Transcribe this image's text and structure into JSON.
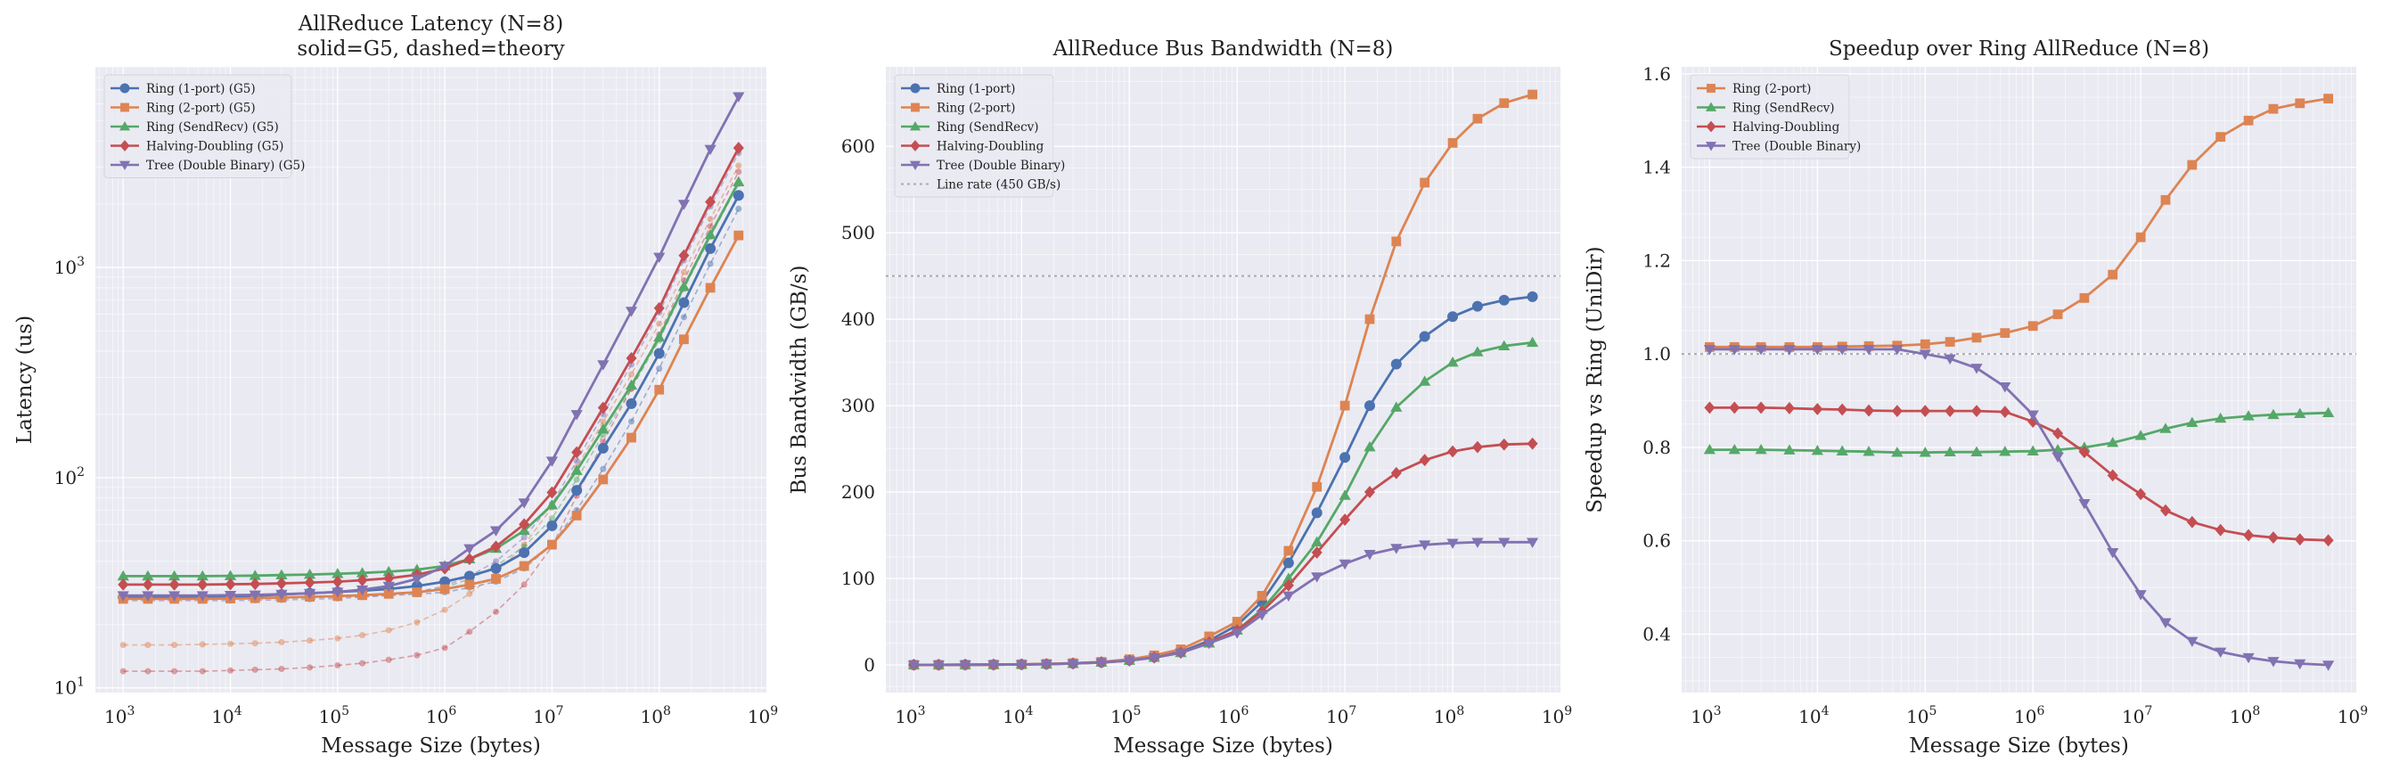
{
  "chart_data": [
    {
      "type": "line",
      "title": "AllReduce Latency (N=8)",
      "subtitle": "solid=G5, dashed=theory",
      "xlabel": "Message Size (bytes)",
      "ylabel": "Latency (us)",
      "xscale": "log",
      "yscale": "log",
      "xlim": [
        550,
        1000000000
      ],
      "ylim": [
        9.5,
        9000
      ],
      "xticks": [
        1000,
        10000,
        100000,
        1000000,
        10000000,
        100000000,
        1000000000
      ],
      "xticklabels": [
        [
          "10",
          "3"
        ],
        [
          "10",
          "4"
        ],
        [
          "10",
          "5"
        ],
        [
          "10",
          "6"
        ],
        [
          "10",
          "7"
        ],
        [
          "10",
          "8"
        ],
        [
          "10",
          "9"
        ]
      ],
      "yticks": [
        10,
        100,
        1000
      ],
      "yticklabels": [
        [
          "10",
          "1"
        ],
        [
          "10",
          "2"
        ],
        [
          "10",
          "3"
        ]
      ],
      "grid": true,
      "legend": "top-left",
      "x": [
        1000,
        1700,
        3000,
        5500,
        10000,
        17000,
        30000,
        55000,
        100000,
        170000,
        300000,
        550000,
        1000000,
        1700000,
        3000000,
        5500000,
        10000000,
        17000000,
        30000000,
        55000000,
        100000000,
        170000000,
        300000000,
        550000000
      ],
      "series": [
        {
          "name": "Ring (1-port) (G5)",
          "color": "#4c72b0",
          "marker": "o",
          "values": [
            27,
            27,
            27,
            27,
            27.2,
            27.4,
            27.8,
            28.2,
            28.6,
            29,
            29.5,
            30.5,
            32,
            34,
            37,
            44,
            59,
            87,
            138,
            225,
            390,
            680,
            1230,
            2200
          ]
        },
        {
          "name": "Ring (2-port) (G5)",
          "color": "#dd8452",
          "marker": "s",
          "values": [
            26.5,
            26.5,
            26.5,
            26.5,
            26.6,
            26.7,
            26.9,
            27.1,
            27.3,
            27.6,
            28,
            28.5,
            29.5,
            31,
            33,
            38,
            48,
            66,
            98,
            155,
            262,
            455,
            800,
            1420
          ]
        },
        {
          "name": "Ring (SendRecv) (G5)",
          "color": "#55a868",
          "marker": "^",
          "values": [
            34,
            34,
            34,
            34,
            34.1,
            34.2,
            34.4,
            34.6,
            34.9,
            35.2,
            35.7,
            36.5,
            38,
            41,
            46,
            56,
            74,
            108,
            170,
            275,
            465,
            810,
            1430,
            2550
          ]
        },
        {
          "name": "Halving-Doubling (G5)",
          "color": "#c44e52",
          "marker": "D",
          "values": [
            31,
            31,
            31,
            31,
            31.1,
            31.2,
            31.4,
            31.7,
            32,
            32.5,
            33.2,
            34.5,
            37,
            41,
            47,
            60,
            85,
            132,
            215,
            370,
            640,
            1140,
            2050,
            3700
          ]
        },
        {
          "name": "Tree (Double Binary) (G5)",
          "color": "#8172b2",
          "marker": "v",
          "values": [
            27.5,
            27.5,
            27.5,
            27.5,
            27.6,
            27.7,
            27.9,
            28.2,
            28.6,
            29.3,
            30.5,
            33,
            38,
            46,
            56,
            76,
            120,
            200,
            345,
            620,
            1120,
            2000,
            3650,
            6500
          ]
        }
      ],
      "theory_series": [
        {
          "color": "#4c72b0",
          "values": [
            27,
            27,
            27,
            27,
            27,
            27,
            27,
            27.1,
            27.2,
            27.3,
            27.5,
            27.9,
            28.5,
            30,
            32,
            37,
            48,
            70,
            110,
            185,
            330,
            580,
            1040,
            1900
          ]
        },
        {
          "color": "#dd8452",
          "values": [
            16,
            16,
            16,
            16.1,
            16.2,
            16.3,
            16.5,
            16.8,
            17.2,
            17.8,
            18.8,
            20.5,
            23.5,
            28,
            35,
            48,
            72,
            112,
            185,
            310,
            540,
            950,
            1700,
            3050
          ]
        },
        {
          "color": "#55a868",
          "values": [
            26.5,
            26.5,
            26.5,
            26.5,
            26.5,
            26.6,
            26.7,
            26.8,
            27,
            27.3,
            27.8,
            28.6,
            30,
            33,
            38,
            47,
            64,
            98,
            160,
            265,
            450,
            790,
            1400,
            2500
          ]
        },
        {
          "color": "#c44e52",
          "values": [
            12,
            12,
            12,
            12,
            12.1,
            12.2,
            12.3,
            12.5,
            12.8,
            13.1,
            13.6,
            14.3,
            15.5,
            18.5,
            23,
            31,
            47,
            82,
            148,
            265,
            480,
            870,
            1570,
            2850
          ]
        },
        {
          "color": "#8172b2",
          "values": [
            26,
            26,
            26,
            26,
            26,
            26.1,
            26.2,
            26.4,
            26.6,
            27,
            27.6,
            28.6,
            30.5,
            34,
            40,
            52,
            75,
            120,
            200,
            345,
            610,
            1080,
            1950,
            3500
          ]
        }
      ]
    },
    {
      "type": "line",
      "title": "AllReduce Bus Bandwidth (N=8)",
      "xlabel": "Message Size (bytes)",
      "ylabel": "Bus Bandwidth (GB/s)",
      "xscale": "log",
      "yscale": "linear",
      "xlim": [
        550,
        1000000000
      ],
      "ylim": [
        -32,
        692
      ],
      "xticks": [
        1000,
        10000,
        100000,
        1000000,
        10000000,
        100000000,
        1000000000
      ],
      "xticklabels": [
        [
          "10",
          "3"
        ],
        [
          "10",
          "4"
        ],
        [
          "10",
          "5"
        ],
        [
          "10",
          "6"
        ],
        [
          "10",
          "7"
        ],
        [
          "10",
          "8"
        ],
        [
          "10",
          "9"
        ]
      ],
      "yticks": [
        0,
        100,
        200,
        300,
        400,
        500,
        600
      ],
      "yticklabels": [
        "0",
        "100",
        "200",
        "300",
        "400",
        "500",
        "600"
      ],
      "grid": true,
      "legend": "top-left",
      "x": [
        1000,
        1700,
        3000,
        5500,
        10000,
        17000,
        30000,
        55000,
        100000,
        170000,
        300000,
        550000,
        1000000,
        1700000,
        3000000,
        5500000,
        10000000,
        17000000,
        30000000,
        55000000,
        100000000,
        170000000,
        300000000,
        550000000
      ],
      "series": [
        {
          "name": "Ring (1-port)",
          "color": "#4c72b0",
          "marker": "o",
          "values": [
            0.1,
            0.1,
            0.2,
            0.4,
            0.6,
            1,
            1.8,
            3,
            5.5,
            9,
            15,
            28,
            46,
            73,
            118,
            176,
            240,
            300,
            348,
            380,
            403,
            415,
            422,
            426
          ]
        },
        {
          "name": "Ring (2-port)",
          "color": "#dd8452",
          "marker": "s",
          "values": [
            0.1,
            0.1,
            0.2,
            0.4,
            0.7,
            1.2,
            2,
            3.5,
            6.5,
            11,
            18,
            33,
            50,
            80,
            132,
            206,
            300,
            400,
            490,
            558,
            604,
            632,
            650,
            660
          ]
        },
        {
          "name": "Ring (SendRecv)",
          "color": "#55a868",
          "marker": "^",
          "values": [
            0.1,
            0.1,
            0.2,
            0.3,
            0.5,
            0.9,
            1.5,
            2.8,
            5,
            8.5,
            14,
            25,
            40,
            64,
            100,
            142,
            196,
            252,
            298,
            328,
            350,
            362,
            369,
            373
          ]
        },
        {
          "name": "Halving-Doubling",
          "color": "#c44e52",
          "marker": "D",
          "values": [
            0.1,
            0.1,
            0.2,
            0.3,
            0.5,
            0.9,
            1.6,
            3,
            5,
            8.5,
            14,
            26,
            40,
            62,
            92,
            130,
            168,
            200,
            222,
            237,
            247,
            252,
            255,
            256
          ]
        },
        {
          "name": "Tree (Double Binary)",
          "color": "#8172b2",
          "marker": "v",
          "values": [
            0.1,
            0.1,
            0.2,
            0.3,
            0.5,
            0.9,
            1.5,
            2.8,
            5,
            8.5,
            14,
            25,
            37,
            58,
            80,
            102,
            117,
            128,
            135,
            139,
            141,
            142,
            142,
            142
          ]
        }
      ],
      "reference_line": {
        "name": "Line rate (450 GB/s)",
        "y": 450,
        "color": "#aaaaaa"
      }
    },
    {
      "type": "line",
      "title": "Speedup over Ring AllReduce (N=8)",
      "xlabel": "Message Size (bytes)",
      "ylabel": "Speedup vs Ring (UniDir)",
      "xscale": "log",
      "yscale": "linear",
      "xlim": [
        550,
        1000000000
      ],
      "ylim": [
        0.275,
        1.615
      ],
      "xticks": [
        1000,
        10000,
        100000,
        1000000,
        10000000,
        100000000,
        1000000000
      ],
      "xticklabels": [
        [
          "10",
          "3"
        ],
        [
          "10",
          "4"
        ],
        [
          "10",
          "5"
        ],
        [
          "10",
          "6"
        ],
        [
          "10",
          "7"
        ],
        [
          "10",
          "8"
        ],
        [
          "10",
          "9"
        ]
      ],
      "yticks": [
        0.4,
        0.6,
        0.8,
        1.0,
        1.2,
        1.4,
        1.6
      ],
      "yticklabels": [
        "0.4",
        "0.6",
        "0.8",
        "1.0",
        "1.2",
        "1.4",
        "1.6"
      ],
      "grid": true,
      "legend": "top-left",
      "x": [
        1000,
        1700,
        3000,
        5500,
        10000,
        17000,
        30000,
        55000,
        100000,
        170000,
        300000,
        550000,
        1000000,
        1700000,
        3000000,
        5500000,
        10000000,
        17000000,
        30000000,
        55000000,
        100000000,
        170000000,
        300000000,
        550000000
      ],
      "series": [
        {
          "name": "Ring (2-port)",
          "color": "#dd8452",
          "marker": "s",
          "values": [
            1.015,
            1.015,
            1.015,
            1.015,
            1.015,
            1.016,
            1.017,
            1.018,
            1.021,
            1.026,
            1.035,
            1.045,
            1.06,
            1.085,
            1.12,
            1.17,
            1.25,
            1.33,
            1.405,
            1.465,
            1.5,
            1.525,
            1.537,
            1.547
          ]
        },
        {
          "name": "Ring (SendRecv)",
          "color": "#55a868",
          "marker": "^",
          "values": [
            0.795,
            0.795,
            0.795,
            0.794,
            0.793,
            0.792,
            0.791,
            0.789,
            0.789,
            0.79,
            0.79,
            0.791,
            0.792,
            0.795,
            0.8,
            0.81,
            0.825,
            0.84,
            0.853,
            0.862,
            0.867,
            0.87,
            0.872,
            0.874
          ]
        },
        {
          "name": "Halving-Doubling",
          "color": "#c44e52",
          "marker": "D",
          "values": [
            0.885,
            0.885,
            0.885,
            0.884,
            0.882,
            0.881,
            0.879,
            0.878,
            0.878,
            0.878,
            0.878,
            0.876,
            0.855,
            0.83,
            0.79,
            0.74,
            0.7,
            0.665,
            0.64,
            0.623,
            0.612,
            0.607,
            0.603,
            0.601
          ]
        },
        {
          "name": "Tree (Double Binary)",
          "color": "#8172b2",
          "marker": "v",
          "values": [
            1.01,
            1.01,
            1.01,
            1.01,
            1.01,
            1.01,
            1.01,
            1.01,
            1.0,
            0.99,
            0.97,
            0.93,
            0.87,
            0.78,
            0.68,
            0.575,
            0.485,
            0.425,
            0.385,
            0.362,
            0.35,
            0.342,
            0.337,
            0.334
          ]
        }
      ],
      "reference_line": {
        "y": 1.0,
        "color": "#aaaaaa"
      }
    }
  ]
}
